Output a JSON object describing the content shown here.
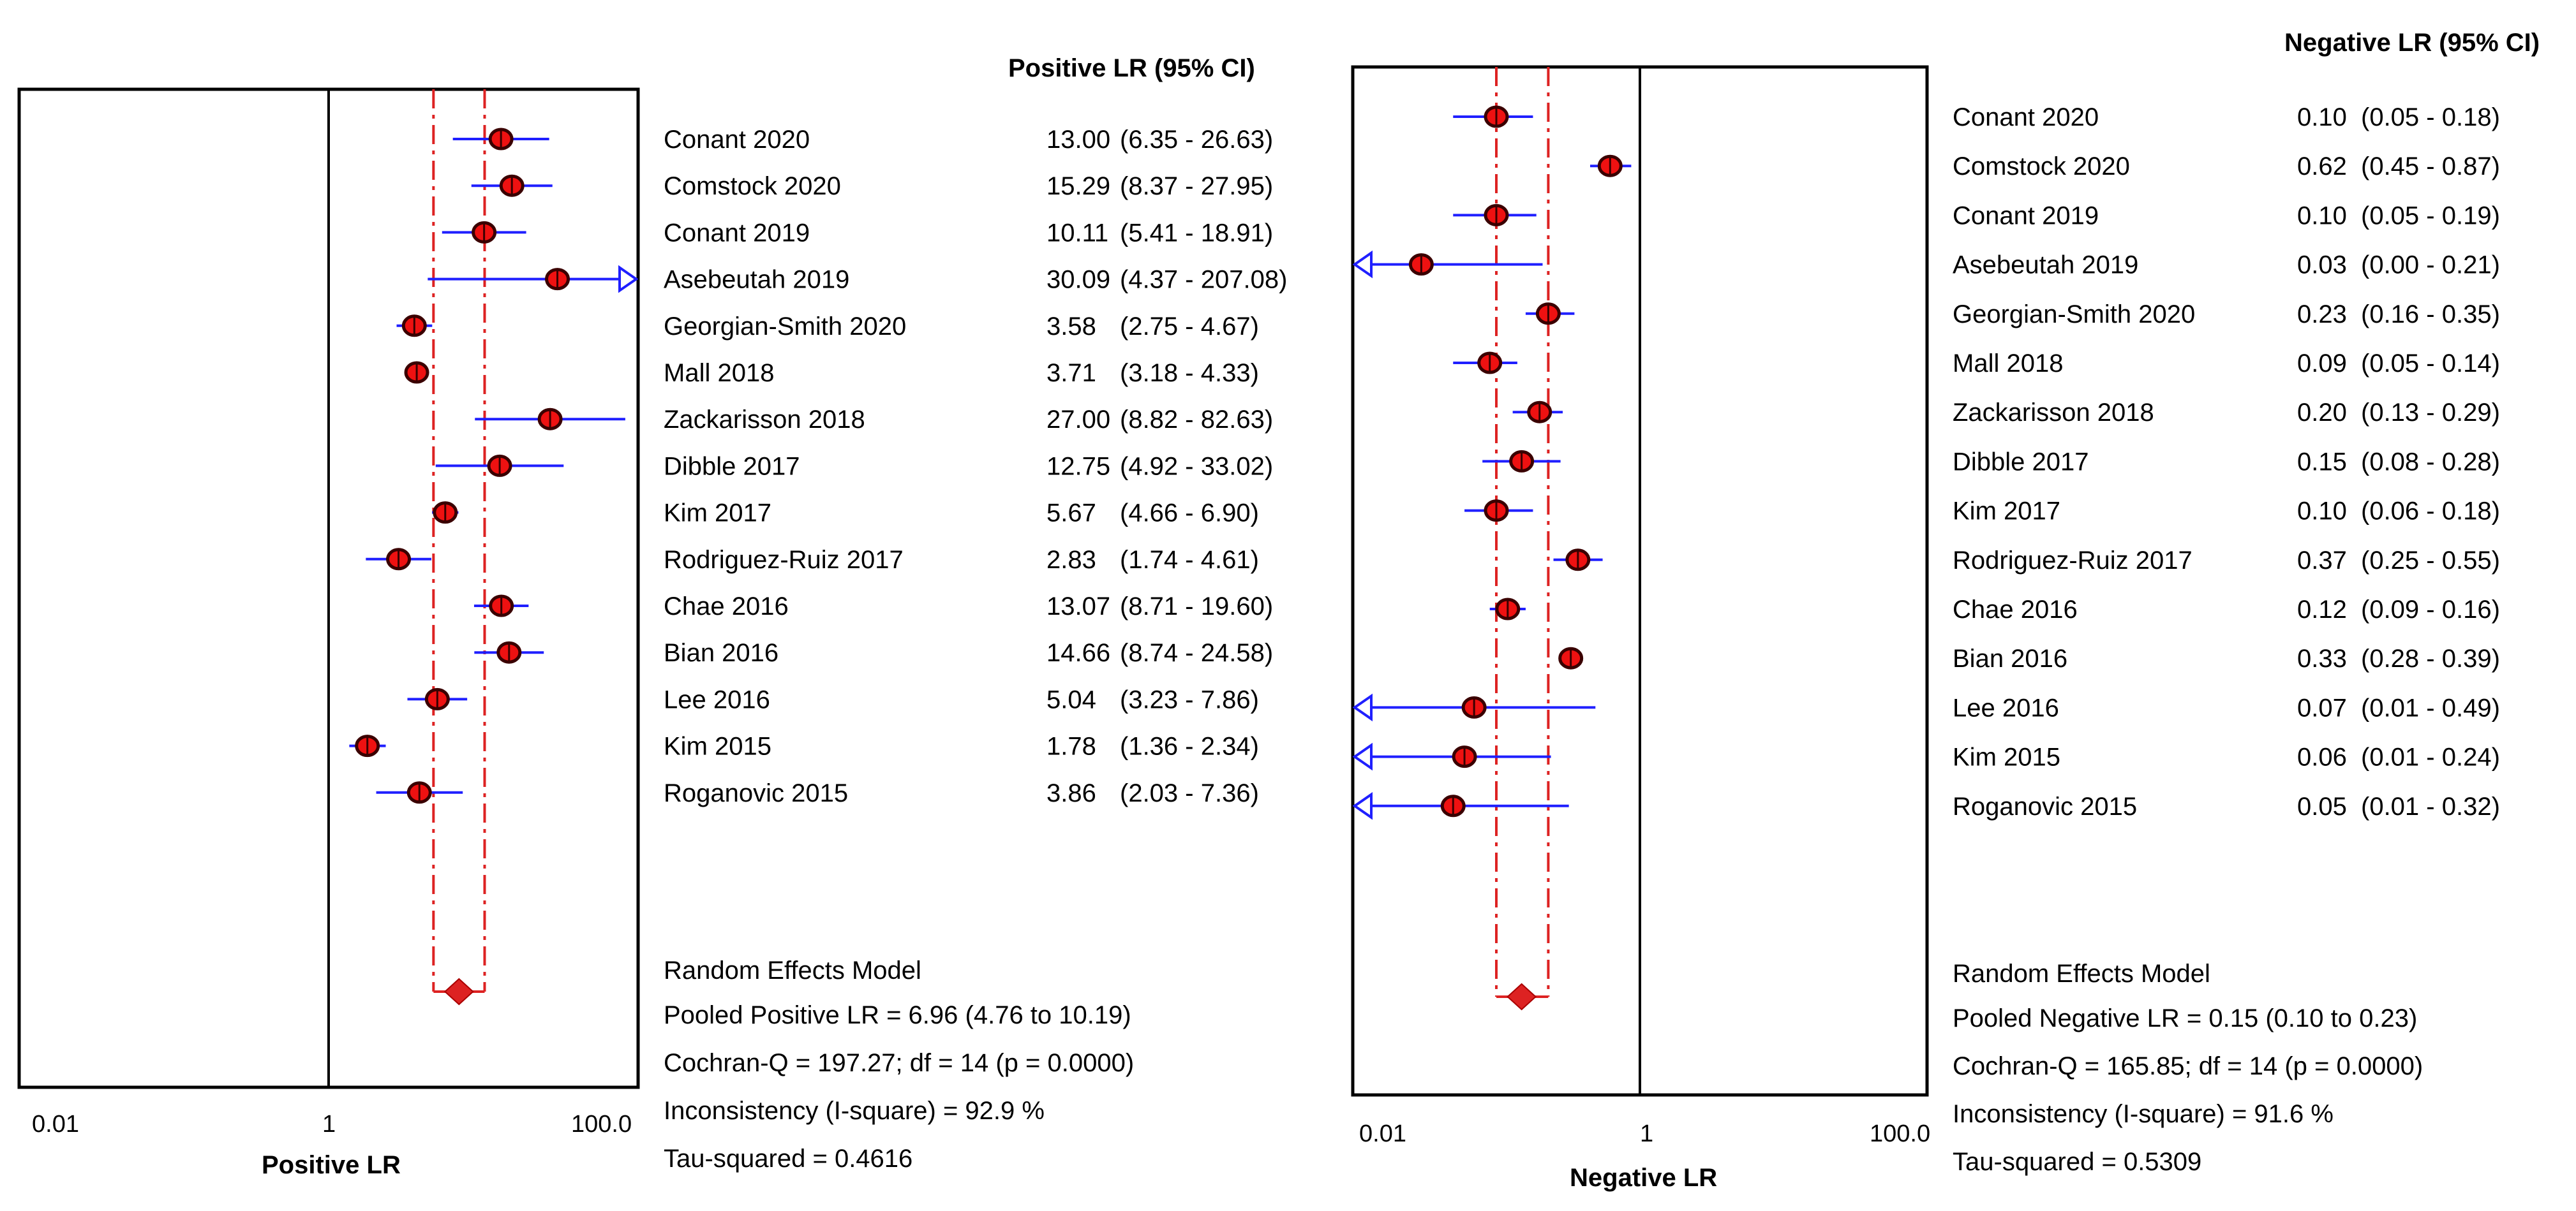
{
  "chart_data": [
    {
      "type": "forest",
      "scale": "log",
      "xlim": [
        0.01,
        100.0
      ],
      "tick_labels": [
        "0.01",
        "1",
        "100.0"
      ],
      "xlabel": "Positive LR",
      "column_header": "Positive LR (95% CI)",
      "pooled_line": 1,
      "studies": [
        {
          "name": "Conant  2020",
          "est": 13.0,
          "lo": 6.35,
          "hi": 26.63,
          "est_text": "13.00",
          "ci_text": "(6.35 - 26.63)"
        },
        {
          "name": "Comstock 2020",
          "est": 15.29,
          "lo": 8.37,
          "hi": 27.95,
          "est_text": "15.29",
          "ci_text": "(8.37 - 27.95)"
        },
        {
          "name": "Conant 2019",
          "est": 10.11,
          "lo": 5.41,
          "hi": 18.91,
          "est_text": "10.11",
          "ci_text": "(5.41 - 18.91)"
        },
        {
          "name": "Asebeutah 2019",
          "est": 30.09,
          "lo": 4.37,
          "hi": 207.08,
          "est_text": "30.09",
          "ci_text": "(4.37 - 207.08)"
        },
        {
          "name": "Georgian-Smith 2020",
          "est": 3.58,
          "lo": 2.75,
          "hi": 4.67,
          "est_text": "3.58",
          "ci_text": "(2.75 - 4.67)"
        },
        {
          "name": "Mall 2018",
          "est": 3.71,
          "lo": 3.18,
          "hi": 4.33,
          "est_text": "3.71",
          "ci_text": "(3.18 - 4.33)"
        },
        {
          "name": "Zackarisson 2018",
          "est": 27.0,
          "lo": 8.82,
          "hi": 82.63,
          "est_text": "27.00",
          "ci_text": "(8.82 - 82.63)"
        },
        {
          "name": "Dibble 2017",
          "est": 12.75,
          "lo": 4.92,
          "hi": 33.02,
          "est_text": "12.75",
          "ci_text": "(4.92 - 33.02)"
        },
        {
          "name": "Kim  2017",
          "est": 5.67,
          "lo": 4.66,
          "hi": 6.9,
          "est_text": "5.67",
          "ci_text": "(4.66 - 6.90)"
        },
        {
          "name": "Rodriguez-Ruiz 2017",
          "est": 2.83,
          "lo": 1.74,
          "hi": 4.61,
          "est_text": "2.83",
          "ci_text": "(1.74 - 4.61)"
        },
        {
          "name": "Chae 2016",
          "est": 13.07,
          "lo": 8.71,
          "hi": 19.6,
          "est_text": "13.07",
          "ci_text": "(8.71 - 19.60)"
        },
        {
          "name": "Bian 2016",
          "est": 14.66,
          "lo": 8.74,
          "hi": 24.58,
          "est_text": "14.66",
          "ci_text": "(8.74 - 24.58)"
        },
        {
          "name": "Lee 2016",
          "est": 5.04,
          "lo": 3.23,
          "hi": 7.86,
          "est_text": "5.04",
          "ci_text": "(3.23 - 7.86)"
        },
        {
          "name": "Kim 2015",
          "est": 1.78,
          "lo": 1.36,
          "hi": 2.34,
          "est_text": "1.78",
          "ci_text": "(1.36 - 2.34)"
        },
        {
          "name": "Roganovic 2015",
          "est": 3.86,
          "lo": 2.03,
          "hi": 7.36,
          "est_text": "3.86",
          "ci_text": "(2.03 - 7.36)"
        }
      ],
      "pooled": {
        "est": 6.96,
        "lo": 4.76,
        "hi": 10.19
      },
      "summary": [
        "Random Effects Model",
        "Pooled Positive LR = 6.96 (4.76 to 10.19)",
        "Cochran-Q = 197.27; df =  14 (p = 0.0000)",
        "Inconsistency (I-square) = 92.9 %",
        "Tau-squared = 0.4616"
      ]
    },
    {
      "type": "forest",
      "scale": "log",
      "xlim": [
        0.01,
        100.0
      ],
      "tick_labels": [
        "0.01",
        "1",
        "100.0"
      ],
      "xlabel": "Negative LR",
      "column_header": "Negative LR (95% CI)",
      "pooled_line": 1,
      "studies": [
        {
          "name": "Conant  2020",
          "est": 0.1,
          "lo": 0.05,
          "hi": 0.18,
          "est_text": "0.10",
          "ci_text": "(0.05 - 0.18)"
        },
        {
          "name": "Comstock 2020",
          "est": 0.62,
          "lo": 0.45,
          "hi": 0.87,
          "est_text": "0.62",
          "ci_text": "(0.45 - 0.87)"
        },
        {
          "name": "Conant 2019",
          "est": 0.1,
          "lo": 0.05,
          "hi": 0.19,
          "est_text": "0.10",
          "ci_text": "(0.05 - 0.19)"
        },
        {
          "name": "Asebeutah 2019",
          "est": 0.03,
          "lo": 0.001,
          "hi": 0.21,
          "est_text": "0.03",
          "ci_text": "(0.00 - 0.21)"
        },
        {
          "name": "Georgian-Smith 2020",
          "est": 0.23,
          "lo": 0.16,
          "hi": 0.35,
          "est_text": "0.23",
          "ci_text": "(0.16 - 0.35)"
        },
        {
          "name": "Mall 2018",
          "est": 0.09,
          "lo": 0.05,
          "hi": 0.14,
          "est_text": "0.09",
          "ci_text": "(0.05 - 0.14)"
        },
        {
          "name": "Zackarisson 2018",
          "est": 0.2,
          "lo": 0.13,
          "hi": 0.29,
          "est_text": "0.20",
          "ci_text": "(0.13 - 0.29)"
        },
        {
          "name": "Dibble 2017",
          "est": 0.15,
          "lo": 0.08,
          "hi": 0.28,
          "est_text": "0.15",
          "ci_text": "(0.08 - 0.28)"
        },
        {
          "name": "Kim  2017",
          "est": 0.1,
          "lo": 0.06,
          "hi": 0.18,
          "est_text": "0.10",
          "ci_text": "(0.06 - 0.18)"
        },
        {
          "name": "Rodriguez-Ruiz 2017",
          "est": 0.37,
          "lo": 0.25,
          "hi": 0.55,
          "est_text": "0.37",
          "ci_text": "(0.25 - 0.55)"
        },
        {
          "name": "Chae 2016",
          "est": 0.12,
          "lo": 0.09,
          "hi": 0.16,
          "est_text": "0.12",
          "ci_text": "(0.09 - 0.16)"
        },
        {
          "name": "Bian 2016",
          "est": 0.33,
          "lo": 0.28,
          "hi": 0.39,
          "est_text": "0.33",
          "ci_text": "(0.28 - 0.39)"
        },
        {
          "name": "Lee 2016",
          "est": 0.07,
          "lo": 0.01,
          "hi": 0.49,
          "est_text": "0.07",
          "ci_text": "(0.01 - 0.49)"
        },
        {
          "name": "Kim 2015",
          "est": 0.06,
          "lo": 0.01,
          "hi": 0.24,
          "est_text": "0.06",
          "ci_text": "(0.01 - 0.24)"
        },
        {
          "name": "Roganovic 2015",
          "est": 0.05,
          "lo": 0.01,
          "hi": 0.32,
          "est_text": "0.05",
          "ci_text": "(0.01 - 0.32)"
        }
      ],
      "pooled": {
        "est": 0.15,
        "lo": 0.1,
        "hi": 0.23
      },
      "summary": [
        "Random Effects Model",
        "Pooled Negative LR = 0.15 (0.10 to 0.23)",
        "Cochran-Q = 165.85; df =  14 (p = 0.0000)",
        "Inconsistency (I-square) = 91.6 %",
        "Tau-squared = 0.5309"
      ]
    }
  ],
  "colors": {
    "ci_line": "#1f1fff",
    "point_fill": "#ee1111",
    "point_stroke": "#3a0000",
    "pooled_line": "#dd2222",
    "frame": "#000000"
  }
}
